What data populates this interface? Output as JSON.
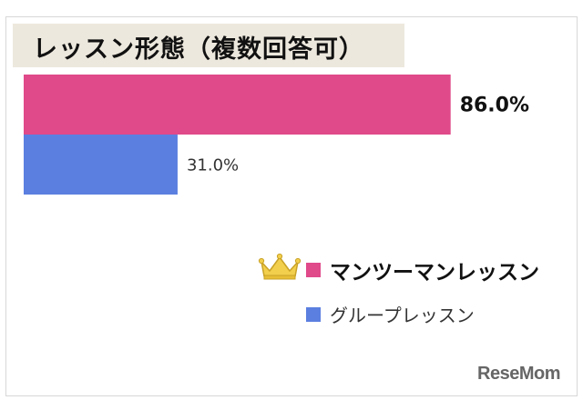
{
  "chart_data": {
    "type": "bar",
    "orientation": "horizontal",
    "title": "レッスン形態（複数回答可）",
    "categories": [
      "マンツーマンレッスン",
      "グループレッスン"
    ],
    "values": [
      86.0,
      31.0
    ],
    "data_labels": [
      "86.0%",
      "31.0%"
    ],
    "colors": [
      "#e0498a",
      "#5b7fe0"
    ],
    "xlim": [
      0,
      100
    ],
    "grid": false,
    "legend_position": "right"
  },
  "legend": {
    "items": [
      {
        "label": "マンツーマンレッスン",
        "color": "#e0498a",
        "icon": "crown-icon"
      },
      {
        "label": "グループレッスン",
        "color": "#5b7fe0"
      }
    ]
  },
  "watermark": "ReseMom"
}
